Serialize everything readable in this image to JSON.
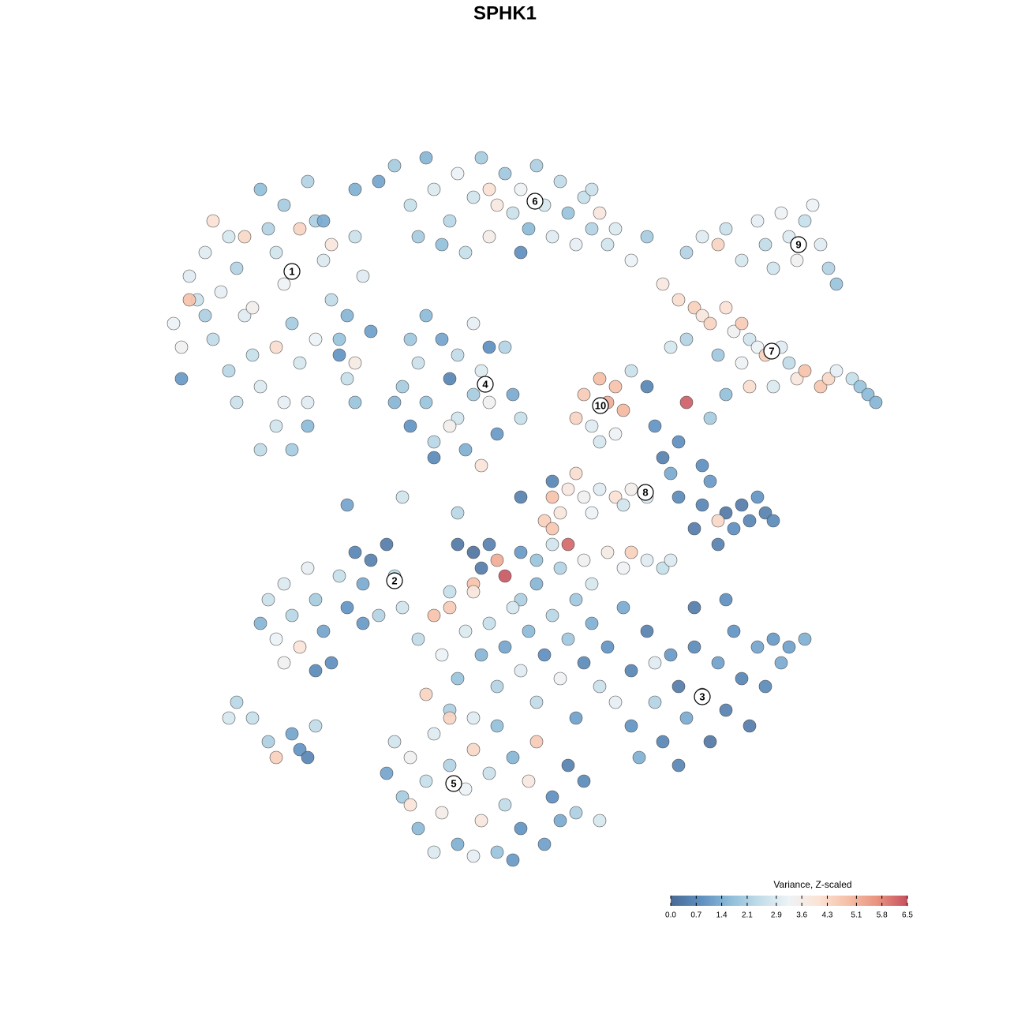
{
  "chart_data": {
    "type": "scatter",
    "title": "SPHK1",
    "xlim": [
      20,
      114
    ],
    "ylim": [
      18,
      110
    ],
    "x": [
      22,
      23,
      24,
      25,
      23,
      26,
      27,
      28,
      29,
      30,
      31,
      32,
      33,
      34,
      35,
      36,
      37,
      38,
      39,
      40,
      41,
      42,
      43,
      44,
      45,
      46,
      44,
      35,
      33,
      37,
      39,
      30,
      36,
      24,
      27,
      31,
      35,
      38,
      42,
      47,
      43,
      32,
      41,
      29,
      26,
      40,
      36,
      45,
      33,
      39,
      48,
      50,
      52,
      54,
      55,
      57,
      58,
      60,
      61,
      62,
      63,
      64,
      65,
      66,
      67,
      68,
      69,
      70,
      71,
      72,
      73,
      74,
      75,
      76,
      77,
      78,
      80,
      82,
      56,
      59,
      66,
      53,
      62,
      75,
      87,
      89,
      91,
      92,
      94,
      96,
      97,
      99,
      100,
      102,
      104,
      105,
      106,
      101,
      98,
      103,
      84,
      86,
      88,
      89,
      90,
      92,
      93,
      94,
      95,
      96,
      97,
      99,
      100,
      101,
      102,
      104,
      105,
      106,
      108,
      109,
      110,
      111,
      98,
      95,
      94,
      87,
      85,
      91,
      50,
      51,
      52,
      53,
      54,
      55,
      56,
      57,
      58,
      59,
      60,
      61,
      62,
      63,
      64,
      65,
      66,
      55,
      52,
      57,
      60,
      62,
      58,
      54,
      74,
      75,
      76,
      77,
      78,
      79,
      76,
      78,
      73,
      80,
      82,
      83,
      84,
      85,
      86,
      87,
      86,
      88,
      89,
      90,
      91,
      92,
      93,
      94,
      95,
      96,
      97,
      98,
      91,
      89,
      90,
      92,
      70,
      72,
      74,
      76,
      78,
      80,
      82,
      71,
      75,
      79,
      69,
      73,
      70,
      66,
      58,
      60,
      62,
      61,
      63,
      64,
      66,
      68,
      70,
      71,
      72,
      74,
      75,
      77,
      79,
      80,
      82,
      84,
      85,
      68,
      66,
      60,
      57,
      73,
      33,
      34,
      35,
      36,
      37,
      38,
      39,
      40,
      41,
      42,
      43,
      44,
      45,
      46,
      47,
      49,
      50,
      51,
      48,
      36,
      40,
      46,
      29,
      30,
      32,
      34,
      35,
      37,
      38,
      40,
      39,
      53,
      55,
      56,
      57,
      58,
      59,
      60,
      61,
      62,
      63,
      64,
      65,
      66,
      67,
      68,
      69,
      70,
      71,
      72,
      73,
      74,
      75,
      76,
      77,
      78,
      79,
      80,
      54,
      57,
      60,
      63,
      80,
      81,
      82,
      83,
      84,
      85,
      86,
      87,
      88,
      89,
      90,
      91,
      92,
      93,
      94,
      95,
      96,
      97,
      98,
      99,
      100,
      102,
      86,
      83,
      88,
      92,
      49,
      50,
      51,
      52,
      53,
      54,
      55,
      56,
      57,
      58,
      59,
      60,
      61,
      62,
      63,
      64,
      65,
      66,
      67,
      68,
      69,
      70,
      71,
      72,
      73,
      74,
      76,
      55,
      60,
      65,
      52,
      57,
      44,
      51,
      58,
      61,
      70,
      45,
      45
    ],
    "y": [
      86,
      83,
      92,
      89,
      79,
      95,
      84,
      90,
      97,
      93,
      87,
      82,
      78,
      98,
      95,
      91,
      86,
      81,
      76,
      99,
      94,
      89,
      84,
      79,
      97,
      92,
      87,
      73,
      70,
      70,
      73,
      76,
      76,
      89,
      99,
      97,
      83,
      98,
      96,
      85,
      82,
      88,
      99,
      80,
      87,
      84,
      101,
      103,
      103,
      104,
      104,
      106,
      101,
      107,
      103,
      99,
      105,
      102,
      107,
      97,
      101,
      105,
      100,
      103,
      98,
      106,
      101,
      97,
      104,
      100,
      96,
      102,
      98,
      100,
      96,
      98,
      94,
      97,
      96,
      95,
      95,
      97,
      103,
      103,
      95,
      97,
      96,
      98,
      94,
      99,
      96,
      100,
      97,
      99,
      96,
      93,
      91,
      94,
      93,
      101,
      91,
      89,
      88,
      87,
      86,
      88,
      85,
      86,
      84,
      83,
      82,
      83,
      81,
      79,
      80,
      78,
      79,
      80,
      79,
      78,
      77,
      76,
      78,
      78,
      81,
      84,
      83,
      82,
      76,
      78,
      73,
      81,
      76,
      71,
      84,
      79,
      74,
      70,
      86,
      80,
      76,
      72,
      83,
      77,
      74,
      69,
      84,
      73,
      77,
      83,
      82,
      87,
      77,
      73,
      79,
      76,
      78,
      75,
      71,
      72,
      74,
      80,
      78,
      73,
      69,
      67,
      71,
      76,
      64,
      60,
      63,
      66,
      58,
      62,
      60,
      63,
      61,
      64,
      62,
      61,
      61,
      68,
      74,
      77,
      64,
      65,
      64,
      65,
      64,
      65,
      64,
      62,
      62,
      63,
      61,
      67,
      66,
      64,
      58,
      57,
      58,
      55,
      56,
      54,
      57,
      56,
      58,
      55,
      58,
      56,
      53,
      57,
      55,
      57,
      56,
      55,
      56,
      53,
      51,
      53,
      52,
      51,
      48,
      51,
      46,
      53,
      49,
      45,
      55,
      51,
      47,
      43,
      54,
      50,
      57,
      53,
      56,
      58,
      54,
      50,
      49,
      43,
      42,
      48,
      36,
      38,
      36,
      33,
      31,
      34,
      32,
      35,
      31,
      46,
      49,
      44,
      50,
      41,
      47,
      52,
      44,
      48,
      40,
      45,
      50,
      42,
      47,
      38,
      44,
      49,
      41,
      46,
      36,
      43,
      48,
      40,
      45,
      38,
      50,
      42,
      39,
      37,
      36,
      35,
      35,
      31,
      47,
      38,
      33,
      44,
      40,
      36,
      45,
      39,
      33,
      43,
      37,
      47,
      41,
      35,
      45,
      40,
      46,
      43,
      45,
      46,
      30,
      43,
      50,
      51,
      29,
      33,
      26,
      31,
      22,
      28,
      34,
      24,
      30,
      20,
      27,
      32,
      23,
      29,
      19,
      25,
      31,
      22,
      28,
      33,
      20,
      26,
      23,
      30,
      24,
      28,
      23,
      19,
      18.5,
      18,
      25,
      36,
      63,
      64,
      62,
      68,
      60,
      81,
      76
    ],
    "values": [
      3.2,
      3.4,
      3.0,
      2.6,
      1.0,
      3.0,
      2.4,
      3.1,
      2.8,
      2.2,
      3.0,
      2.5,
      2.9,
      2.2,
      2.7,
      3.3,
      2.0,
      2.8,
      3.0,
      2.1,
      2.9,
      2.4,
      1.8,
      2.5,
      2.6,
      3.0,
      1.5,
      2.7,
      2.4,
      2.0,
      1.6,
      2.6,
      3.1,
      4.8,
      4.1,
      4.3,
      4.2,
      4.4,
      3.9,
      1.1,
      0.9,
      3.5,
      1.3,
      2.3,
      2.1,
      3.2,
      2.0,
      1.4,
      1.7,
      2.2,
      1.2,
      2.0,
      2.5,
      1.5,
      2.9,
      2.3,
      3.2,
      2.7,
      2.0,
      3.6,
      3.8,
      1.9,
      2.6,
      3.3,
      1.6,
      2.1,
      2.8,
      3.0,
      2.4,
      1.8,
      3.1,
      2.5,
      2.2,
      3.9,
      2.7,
      2.9,
      3.2,
      2.0,
      1.7,
      2.5,
      0.8,
      2.0,
      4.1,
      2.6,
      2.2,
      3.0,
      4.4,
      2.6,
      2.8,
      3.1,
      2.4,
      3.3,
      2.9,
      2.5,
      3.0,
      2.2,
      1.8,
      3.4,
      2.7,
      3.2,
      3.8,
      4.2,
      4.5,
      3.9,
      4.4,
      4.1,
      3.4,
      4.6,
      2.7,
      3.2,
      4.5,
      3.0,
      2.4,
      3.9,
      4.8,
      4.7,
      4.3,
      3.1,
      2.5,
      1.8,
      1.6,
      1.5,
      2.9,
      4.2,
      3.3,
      2.2,
      2.8,
      1.9,
      1.5,
      2.0,
      0.9,
      2.6,
      1.8,
      2.3,
      1.2,
      0.6,
      2.7,
      1.4,
      3.1,
      2.9,
      3.4,
      1.0,
      2.2,
      1.3,
      2.5,
      0.7,
      1.9,
      3.5,
      2.0,
      0.8,
      2.4,
      1.6,
      4.6,
      3.0,
      4.9,
      5.2,
      4.8,
      5.0,
      2.8,
      3.3,
      4.4,
      2.6,
      0.6,
      0.9,
      0.5,
      1.3,
      0.8,
      6.3,
      0.7,
      0.4,
      0.6,
      1.0,
      0.5,
      0.3,
      0.8,
      0.4,
      0.6,
      0.9,
      0.5,
      0.7,
      4.3,
      0.8,
      2.0,
      1.7,
      4.8,
      3.8,
      3.4,
      3.0,
      4.1,
      3.5,
      2.9,
      3.9,
      3.2,
      2.7,
      4.5,
      4.2,
      0.6,
      0.5,
      0.3,
      0.2,
      0.5,
      0.4,
      5.2,
      6.4,
      1.0,
      1.8,
      2.7,
      2.2,
      6.2,
      3.4,
      2.8,
      3.7,
      3.3,
      4.5,
      3.0,
      2.5,
      2.9,
      1.5,
      2.1,
      4.8,
      2.5,
      1.9,
      1.5,
      2.6,
      3.2,
      2.9,
      2.3,
      4.0,
      3.1,
      2.0,
      1.2,
      0.8,
      2.5,
      0.9,
      0.6,
      1.3,
      0.5,
      0.4,
      2.4,
      2.7,
      2.2,
      3.4,
      0.7,
      1.0,
      2.8,
      2.3,
      2.5,
      2.1,
      4.5,
      1.2,
      0.9,
      2.4,
      0.6,
      2.4,
      4.8,
      3.2,
      4.6,
      1.8,
      2.9,
      3.9,
      1.5,
      2.5,
      2.2,
      1.2,
      2.8,
      3.0,
      1.6,
      2.4,
      0.8,
      2.3,
      3.3,
      1.9,
      1.1,
      0.7,
      1.4,
      2.6,
      0.9,
      3.1,
      1.3,
      0.6,
      4.4,
      2.1,
      3.0,
      1.7,
      0.9,
      1.4,
      0.5,
      2.2,
      0.6,
      1.0,
      0.4,
      1.3,
      0.7,
      0.8,
      0.3,
      1.1,
      0.5,
      0.9,
      0.6,
      0.4,
      1.2,
      0.7,
      1.0,
      1.3,
      1.1,
      1.4,
      0.6,
      3.0,
      0.4,
      0.8,
      1.2,
      2.7,
      2.0,
      3.4,
      1.6,
      2.5,
      3.0,
      3.6,
      2.2,
      1.4,
      3.2,
      4.3,
      3.9,
      2.6,
      1.8,
      2.4,
      1.5,
      0.9,
      3.8,
      4.6,
      1.1,
      0.8,
      1.3,
      0.5,
      2.1,
      0.7,
      2.8,
      2.9,
      3.1,
      1.0,
      4.0,
      4.4,
      1.2,
      2.7,
      2.3,
      4.0,
      4.7,
      3.7,
      1.8
    ],
    "annotations": [
      {
        "text": "1",
        "x": 37,
        "y": 92.6
      },
      {
        "text": "6",
        "x": 67.8,
        "y": 101.5
      },
      {
        "text": "9",
        "x": 101.2,
        "y": 96
      },
      {
        "text": "7",
        "x": 97.8,
        "y": 82.5
      },
      {
        "text": "4",
        "x": 61.5,
        "y": 78.3
      },
      {
        "text": "10",
        "x": 76.1,
        "y": 75.6
      },
      {
        "text": "8",
        "x": 81.8,
        "y": 64.6
      },
      {
        "text": "2",
        "x": 50,
        "y": 53.4
      },
      {
        "text": "3",
        "x": 89,
        "y": 38.7
      },
      {
        "text": "5",
        "x": 57.5,
        "y": 27.7
      }
    ],
    "colorbar": {
      "title": "Variance, Z-scaled",
      "clim": [
        0,
        6.5
      ],
      "colors": [
        "#4a6a95",
        "#5d8fc0",
        "#8dbcd9",
        "#c2dde9",
        "#eef3f6",
        "#fbe3d6",
        "#f5bfa6",
        "#e8927f",
        "#c5505e"
      ],
      "ticks": [
        {
          "value": 0,
          "label": "0.0"
        },
        0.7,
        1.4,
        2.1,
        2.9,
        3.6,
        4.3,
        5.1,
        5.8,
        6.5
      ],
      "legend_position": "bottom-right"
    }
  }
}
